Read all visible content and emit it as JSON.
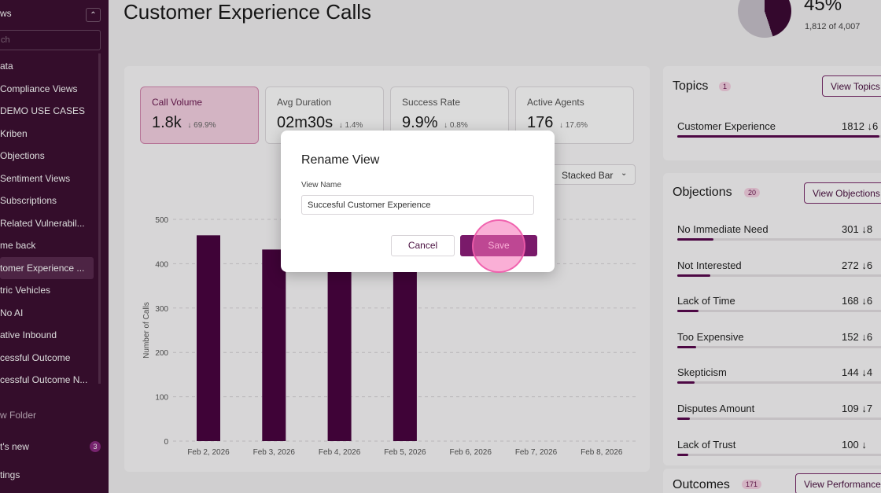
{
  "sidebar": {
    "title": "ws",
    "search_placeholder": "ch",
    "items": [
      {
        "label": "ata"
      },
      {
        "label": "Compliance Views"
      },
      {
        "label": "DEMO USE CASES"
      },
      {
        "label": "Kriben"
      },
      {
        "label": "Objections"
      },
      {
        "label": "Sentiment Views"
      },
      {
        "label": "Subscriptions"
      },
      {
        "label": "Related Vulnerabil..."
      },
      {
        "label": "me back"
      },
      {
        "label": "tomer Experience ..."
      },
      {
        "label": "tric Vehicles"
      },
      {
        "label": "No AI"
      },
      {
        "label": "ative Inbound"
      },
      {
        "label": "cessful Outcome"
      },
      {
        "label": "cessful Outcome N..."
      }
    ],
    "active_index": 9,
    "new_folder": "w Folder",
    "whats_new": "t's new",
    "whats_new_badge": "3",
    "settings": "tings"
  },
  "header": {
    "title": "Customer Experience Calls",
    "percent": "45%",
    "percent_sub": "1,812 of 4,007",
    "donut_fraction": 0.45
  },
  "kpis": [
    {
      "label": "Call Volume",
      "value": "1.8k",
      "change": "↓ 69.9%"
    },
    {
      "label": "Avg Duration",
      "value": "02m30s",
      "change": "↓ 1.4%"
    },
    {
      "label": "Success Rate",
      "value": "9.9%",
      "change": "↓ 0.8%"
    },
    {
      "label": "Active Agents",
      "value": "176",
      "change": "↓ 17.6%"
    }
  ],
  "chart_type_select": "Stacked Bar",
  "chart_data": {
    "type": "bar",
    "categories": [
      "Feb 2, 2026",
      "Feb 3, 2026",
      "Feb 4, 2026",
      "Feb 5, 2026",
      "Feb 6, 2026",
      "Feb 7, 2026",
      "Feb 8, 2026"
    ],
    "values": [
      464,
      432,
      398,
      402,
      0,
      0,
      0
    ],
    "ylabel": "Number of Calls",
    "ylim": [
      0,
      500
    ],
    "yticks": [
      "0",
      "100",
      "200",
      "300",
      "400",
      "500"
    ],
    "grid": true,
    "color": "#4a0440"
  },
  "topics": {
    "title": "Topics",
    "count": "1",
    "button": "View Topics",
    "rows": [
      {
        "name": "Customer Experience",
        "value": "1812",
        "change": "↓6",
        "fraction": 0.95
      }
    ]
  },
  "objections": {
    "title": "Objections",
    "count": "20",
    "button": "View Objections",
    "rows": [
      {
        "name": "No Immediate Need",
        "value": "301",
        "change": "↓8",
        "fraction": 0.17
      },
      {
        "name": "Not Interested",
        "value": "272",
        "change": "↓6",
        "fraction": 0.155
      },
      {
        "name": "Lack of Time",
        "value": "168",
        "change": "↓6",
        "fraction": 0.1
      },
      {
        "name": "Too Expensive",
        "value": "152",
        "change": "↓6",
        "fraction": 0.09
      },
      {
        "name": "Skepticism",
        "value": "144",
        "change": "↓4",
        "fraction": 0.08
      },
      {
        "name": "Disputes Amount",
        "value": "109",
        "change": "↓7",
        "fraction": 0.06
      },
      {
        "name": "Lack of Trust",
        "value": "100",
        "change": "↓",
        "fraction": 0.05
      }
    ]
  },
  "outcomes": {
    "title": "Outcomes",
    "count": "171",
    "button": "View Performance"
  },
  "modal": {
    "title": "Rename View",
    "field_label": "View Name",
    "field_value": "Succesful Customer Experience",
    "cancel": "Cancel",
    "save": "Save"
  },
  "colors": {
    "sidebar_bg": "#3d1033",
    "accent": "#7a1a6a",
    "bar": "#4a0440",
    "kpi_selected": "#f6d2e3"
  }
}
